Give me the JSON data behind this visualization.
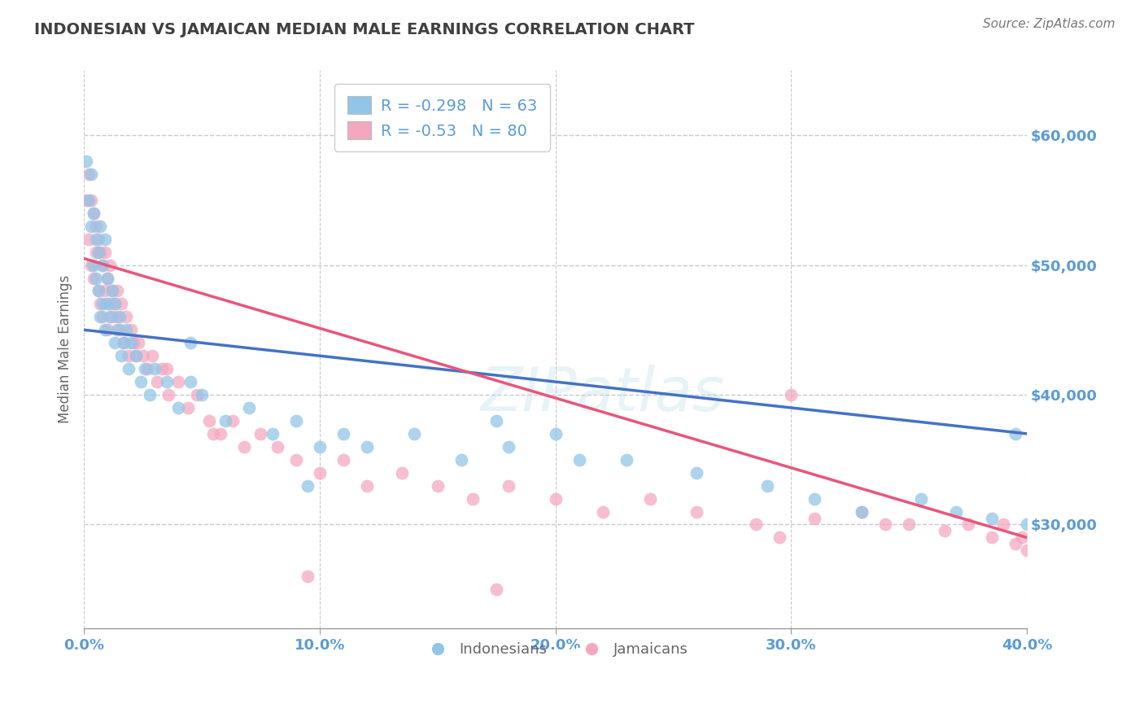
{
  "title": "INDONESIAN VS JAMAICAN MEDIAN MALE EARNINGS CORRELATION CHART",
  "source": "Source: ZipAtlas.com",
  "xlabel": "",
  "ylabel": "Median Male Earnings",
  "x_min": 0.0,
  "x_max": 0.4,
  "y_min": 22000,
  "y_max": 65000,
  "yticks": [
    30000,
    40000,
    50000,
    60000
  ],
  "ytick_labels": [
    "$30,000",
    "$40,000",
    "$50,000",
    "$60,000"
  ],
  "xticks": [
    0.0,
    0.1,
    0.2,
    0.3,
    0.4
  ],
  "xtick_labels": [
    "0.0%",
    "10.0%",
    "20.0%",
    "30.0%",
    "40.0%"
  ],
  "indonesian_R": -0.298,
  "indonesian_N": 63,
  "jamaican_R": -0.53,
  "jamaican_N": 80,
  "indonesian_color": "#92C5E8",
  "jamaican_color": "#F4A8C0",
  "indonesian_line_color": "#4472C4",
  "jamaican_line_color": "#E8567A",
  "background_color": "#FFFFFF",
  "grid_color": "#C8C8D8",
  "title_color": "#404040",
  "axis_color": "#5B9BD5",
  "watermark": "ZIPatlas",
  "indo_line_y0": 45000,
  "indo_line_y1": 37000,
  "jam_line_y0": 50500,
  "jam_line_y1": 29000,
  "indonesian_scatter_x": [
    0.001,
    0.002,
    0.003,
    0.003,
    0.004,
    0.004,
    0.005,
    0.005,
    0.006,
    0.006,
    0.007,
    0.007,
    0.008,
    0.008,
    0.009,
    0.009,
    0.01,
    0.01,
    0.011,
    0.012,
    0.013,
    0.013,
    0.014,
    0.015,
    0.016,
    0.017,
    0.018,
    0.019,
    0.02,
    0.022,
    0.024,
    0.026,
    0.028,
    0.03,
    0.035,
    0.04,
    0.045,
    0.05,
    0.06,
    0.07,
    0.08,
    0.09,
    0.1,
    0.11,
    0.12,
    0.14,
    0.16,
    0.18,
    0.2,
    0.23,
    0.26,
    0.29,
    0.31,
    0.33,
    0.355,
    0.37,
    0.385,
    0.395,
    0.4,
    0.21,
    0.175,
    0.095,
    0.045
  ],
  "indonesian_scatter_y": [
    58000,
    55000,
    53000,
    57000,
    54000,
    50000,
    52000,
    49000,
    51000,
    48000,
    53000,
    46000,
    50000,
    47000,
    52000,
    45000,
    49000,
    47000,
    46000,
    48000,
    44000,
    47000,
    45000,
    46000,
    43000,
    44000,
    45000,
    42000,
    44000,
    43000,
    41000,
    42000,
    40000,
    42000,
    41000,
    39000,
    41000,
    40000,
    38000,
    39000,
    37000,
    38000,
    36000,
    37000,
    36000,
    37000,
    35000,
    36000,
    37000,
    35000,
    34000,
    33000,
    32000,
    31000,
    32000,
    31000,
    30500,
    37000,
    30000,
    35000,
    38000,
    33000,
    44000
  ],
  "jamaican_scatter_x": [
    0.001,
    0.002,
    0.002,
    0.003,
    0.003,
    0.004,
    0.004,
    0.005,
    0.005,
    0.006,
    0.006,
    0.007,
    0.007,
    0.008,
    0.008,
    0.009,
    0.009,
    0.01,
    0.01,
    0.011,
    0.011,
    0.012,
    0.012,
    0.013,
    0.014,
    0.015,
    0.016,
    0.017,
    0.018,
    0.019,
    0.02,
    0.021,
    0.022,
    0.023,
    0.025,
    0.027,
    0.029,
    0.031,
    0.033,
    0.036,
    0.04,
    0.044,
    0.048,
    0.053,
    0.058,
    0.063,
    0.068,
    0.075,
    0.082,
    0.09,
    0.1,
    0.11,
    0.12,
    0.135,
    0.15,
    0.165,
    0.18,
    0.2,
    0.22,
    0.24,
    0.26,
    0.285,
    0.31,
    0.33,
    0.35,
    0.365,
    0.375,
    0.385,
    0.39,
    0.395,
    0.398,
    0.4,
    0.035,
    0.055,
    0.014,
    0.295,
    0.34,
    0.175,
    0.095,
    0.3
  ],
  "jamaican_scatter_y": [
    55000,
    57000,
    52000,
    55000,
    50000,
    54000,
    49000,
    53000,
    51000,
    52000,
    48000,
    51000,
    47000,
    50000,
    46000,
    51000,
    48000,
    49000,
    45000,
    50000,
    47000,
    48000,
    46000,
    47000,
    46000,
    45000,
    47000,
    44000,
    46000,
    43000,
    45000,
    44000,
    43000,
    44000,
    43000,
    42000,
    43000,
    41000,
    42000,
    40000,
    41000,
    39000,
    40000,
    38000,
    37000,
    38000,
    36000,
    37000,
    36000,
    35000,
    34000,
    35000,
    33000,
    34000,
    33000,
    32000,
    33000,
    32000,
    31000,
    32000,
    31000,
    30000,
    30500,
    31000,
    30000,
    29500,
    30000,
    29000,
    30000,
    28500,
    29000,
    28000,
    42000,
    37000,
    48000,
    29000,
    30000,
    25000,
    26000,
    40000
  ]
}
